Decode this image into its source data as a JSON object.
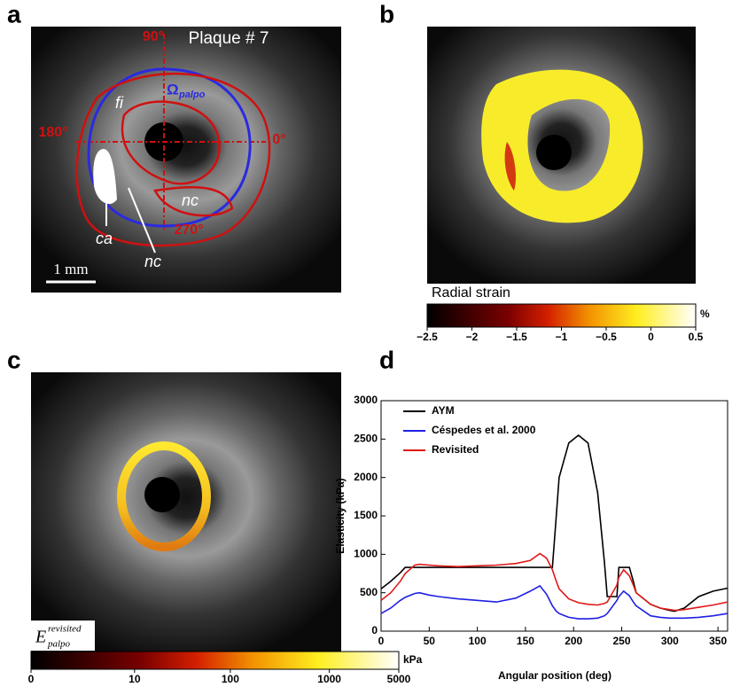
{
  "panels": {
    "a": {
      "letter": "a",
      "title": "Plaque # 7",
      "angles": [
        "90°",
        "180°",
        "0°",
        "270°"
      ],
      "fi": "fi",
      "omega": "Ω",
      "omega_sub": "palpo",
      "nc_upper": "nc",
      "ca": "ca",
      "nc_lower": "nc",
      "scale_bar": "1 mm"
    },
    "b": {
      "letter": "b",
      "colorbar_title": "Radial strain",
      "unit": "%",
      "colorbar_ticks": [
        {
          "value": -2.5,
          "label": "−2.5"
        },
        {
          "value": -2,
          "label": "−2"
        },
        {
          "value": -1.5,
          "label": "−1.5"
        },
        {
          "value": -1,
          "label": "−1"
        },
        {
          "value": -0.5,
          "label": "−0.5"
        },
        0,
        0.5
      ]
    },
    "c": {
      "letter": "c",
      "symbol": "E",
      "subscript": "palpo",
      "superscript": "revisited",
      "unit": "kPa",
      "colorbar_ticks": [
        0,
        10,
        100,
        1000,
        5000
      ]
    }
  },
  "chart_data": {
    "type": "line",
    "panel_letter": "d",
    "xlabel": "Angular position (deg)",
    "ylabel": "Elasticity (kPa)",
    "x": [
      0,
      10,
      20,
      25,
      35,
      40,
      50,
      60,
      80,
      100,
      120,
      140,
      155,
      165,
      172,
      178,
      182,
      185,
      195,
      205,
      215,
      225,
      232,
      235,
      245,
      247,
      252,
      258,
      262,
      265,
      280,
      290,
      300,
      305,
      315,
      330,
      345,
      360
    ],
    "series": [
      {
        "name": "AYM",
        "color": "#000000",
        "values": [
          550,
          650,
          760,
          830,
          830,
          830,
          830,
          830,
          830,
          830,
          830,
          830,
          830,
          830,
          830,
          830,
          1500,
          2000,
          2450,
          2550,
          2450,
          1800,
          900,
          450,
          450,
          830,
          830,
          830,
          650,
          500,
          350,
          300,
          270,
          260,
          300,
          450,
          520,
          560
        ]
      },
      {
        "name": "Céspedes et al. 2000",
        "color": "#1f1fe6",
        "values": [
          230,
          300,
          400,
          440,
          490,
          500,
          470,
          450,
          420,
          400,
          380,
          430,
          520,
          590,
          480,
          330,
          260,
          230,
          180,
          160,
          160,
          170,
          200,
          230,
          400,
          450,
          520,
          460,
          380,
          330,
          200,
          180,
          170,
          170,
          170,
          180,
          200,
          230
        ]
      },
      {
        "name": "Revisited",
        "color": "#e01818",
        "values": [
          400,
          500,
          650,
          750,
          860,
          870,
          860,
          850,
          840,
          850,
          860,
          880,
          920,
          1010,
          950,
          800,
          650,
          550,
          420,
          370,
          350,
          340,
          360,
          380,
          600,
          700,
          800,
          720,
          600,
          500,
          350,
          300,
          280,
          270,
          280,
          310,
          340,
          380
        ]
      }
    ],
    "xlim": [
      0,
      360
    ],
    "ylim": [
      0,
      3000
    ],
    "xticks": [
      0,
      50,
      100,
      150,
      200,
      250,
      300,
      350
    ],
    "yticks": [
      0,
      500,
      1000,
      1500,
      2000,
      2500,
      3000
    ],
    "legend": "upper left"
  }
}
